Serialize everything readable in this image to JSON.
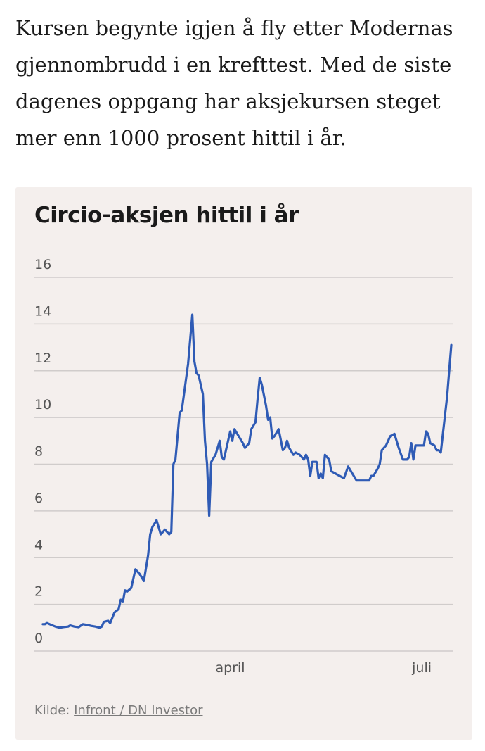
{
  "intro_text": "Kursen begynte igjen å fly etter Modernas gjennombrudd i en krefttest. Med de siste dagenes oppgang har aksjekursen steget mer enn 1000 prosent hittil i år.",
  "source": {
    "prefix": "Kilde:",
    "link_label": "Infront / DN Investor"
  },
  "colors": {
    "line": "#2f5bb5",
    "card_background": "#f4efed",
    "grid": "#d0cccb"
  },
  "chart_data": {
    "type": "line",
    "title": "Circio-aksjen hittil i år",
    "xlabel": "",
    "ylabel": "",
    "ylim": [
      0,
      16
    ],
    "yticks": [
      0,
      2,
      4,
      6,
      8,
      10,
      12,
      14,
      16
    ],
    "xticks": [
      {
        "label": "april",
        "x": 90
      },
      {
        "label": "juli",
        "x": 181
      }
    ],
    "grid": true,
    "x_unit": "day of year",
    "series": [
      {
        "values": [
          [
            1,
            1.15
          ],
          [
            2,
            1.15
          ],
          [
            3,
            1.2
          ],
          [
            5,
            1.12
          ],
          [
            7,
            1.05
          ],
          [
            9,
            1.0
          ],
          [
            11,
            1.03
          ],
          [
            13,
            1.05
          ],
          [
            14,
            1.1
          ],
          [
            16,
            1.05
          ],
          [
            18,
            1.02
          ],
          [
            20,
            1.15
          ],
          [
            22,
            1.12
          ],
          [
            24,
            1.08
          ],
          [
            26,
            1.05
          ],
          [
            28,
            1.0
          ],
          [
            29,
            1.05
          ],
          [
            30,
            1.25
          ],
          [
            32,
            1.3
          ],
          [
            33,
            1.2
          ],
          [
            35,
            1.65
          ],
          [
            37,
            1.8
          ],
          [
            38,
            2.2
          ],
          [
            39,
            2.1
          ],
          [
            40,
            2.6
          ],
          [
            41,
            2.55
          ],
          [
            43,
            2.7
          ],
          [
            45,
            3.5
          ],
          [
            47,
            3.3
          ],
          [
            49,
            3.0
          ],
          [
            51,
            4.1
          ],
          [
            52,
            5.0
          ],
          [
            53,
            5.3
          ],
          [
            55,
            5.6
          ],
          [
            57,
            5.0
          ],
          [
            59,
            5.2
          ],
          [
            61,
            5.0
          ],
          [
            62,
            5.1
          ],
          [
            63,
            8.0
          ],
          [
            64,
            8.2
          ],
          [
            66,
            10.2
          ],
          [
            67,
            10.3
          ],
          [
            70,
            12.3
          ],
          [
            72,
            14.4
          ],
          [
            73,
            12.4
          ],
          [
            74,
            11.9
          ],
          [
            75,
            11.8
          ],
          [
            77,
            11.0
          ],
          [
            78,
            9.0
          ],
          [
            79,
            8.0
          ],
          [
            80,
            5.8
          ],
          [
            81,
            8.1
          ],
          [
            83,
            8.4
          ],
          [
            85,
            9.0
          ],
          [
            86,
            8.3
          ],
          [
            87,
            8.2
          ],
          [
            89,
            9.0
          ],
          [
            90,
            9.4
          ],
          [
            91,
            9.0
          ],
          [
            92,
            9.5
          ],
          [
            94,
            9.2
          ],
          [
            96,
            8.9
          ],
          [
            97,
            8.7
          ],
          [
            99,
            8.9
          ],
          [
            100,
            9.5
          ],
          [
            102,
            9.8
          ],
          [
            103,
            10.8
          ],
          [
            104,
            11.7
          ],
          [
            105,
            11.4
          ],
          [
            107,
            10.5
          ],
          [
            108,
            9.9
          ],
          [
            109,
            10.0
          ],
          [
            110,
            9.1
          ],
          [
            111,
            9.2
          ],
          [
            113,
            9.5
          ],
          [
            115,
            8.6
          ],
          [
            116,
            8.7
          ],
          [
            117,
            9.0
          ],
          [
            118,
            8.7
          ],
          [
            120,
            8.4
          ],
          [
            121,
            8.5
          ],
          [
            123,
            8.4
          ],
          [
            125,
            8.2
          ],
          [
            126,
            8.4
          ],
          [
            127,
            8.2
          ],
          [
            128,
            7.5
          ],
          [
            129,
            8.1
          ],
          [
            131,
            8.1
          ],
          [
            132,
            7.4
          ],
          [
            133,
            7.6
          ],
          [
            134,
            7.4
          ],
          [
            135,
            8.4
          ],
          [
            137,
            8.2
          ],
          [
            138,
            7.7
          ],
          [
            140,
            7.6
          ],
          [
            142,
            7.5
          ],
          [
            144,
            7.4
          ],
          [
            146,
            7.9
          ],
          [
            148,
            7.6
          ],
          [
            150,
            7.3
          ],
          [
            152,
            7.3
          ],
          [
            154,
            7.3
          ],
          [
            156,
            7.3
          ],
          [
            157,
            7.5
          ],
          [
            158,
            7.5
          ],
          [
            160,
            7.8
          ],
          [
            161,
            8.0
          ],
          [
            162,
            8.6
          ],
          [
            164,
            8.8
          ],
          [
            166,
            9.2
          ],
          [
            168,
            9.3
          ],
          [
            170,
            8.7
          ],
          [
            172,
            8.2
          ],
          [
            174,
            8.2
          ],
          [
            175,
            8.3
          ],
          [
            176,
            8.9
          ],
          [
            177,
            8.2
          ],
          [
            178,
            8.8
          ],
          [
            180,
            8.8
          ],
          [
            182,
            8.8
          ],
          [
            183,
            9.4
          ],
          [
            184,
            9.3
          ],
          [
            185,
            8.9
          ],
          [
            187,
            8.8
          ],
          [
            188,
            8.6
          ],
          [
            189,
            8.6
          ],
          [
            190,
            8.5
          ],
          [
            193,
            10.9
          ],
          [
            195,
            13.1
          ]
        ]
      }
    ]
  }
}
